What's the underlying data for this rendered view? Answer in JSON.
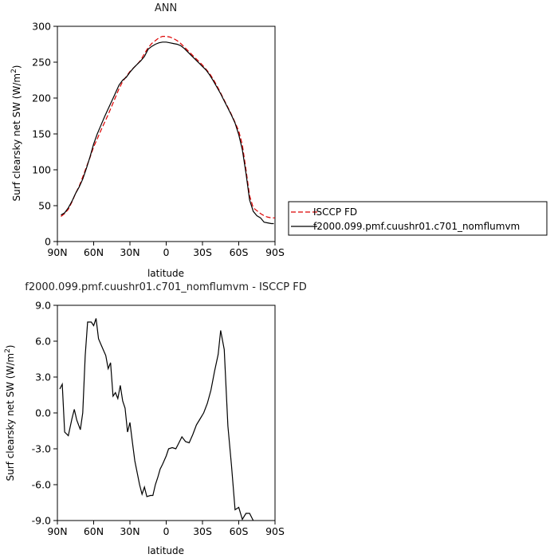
{
  "chart_data": [
    {
      "type": "line",
      "title": "ANN",
      "xlabel": "latitude",
      "ylabel": "Surf clearsky net SW (W/m²)",
      "ylabel_main": "Surf clearsky net SW (W/m",
      "ylabel_sup": "2",
      "ylabel_end": ")",
      "xlim": [
        90,
        -90
      ],
      "ylim": [
        0,
        300
      ],
      "x_ticks": [
        90,
        60,
        30,
        0,
        -30,
        -60,
        -90
      ],
      "x_tick_labels": [
        "90N",
        "60N",
        "30N",
        "0",
        "30S",
        "60S",
        "90S"
      ],
      "y_ticks": [
        0,
        50,
        100,
        150,
        200,
        250,
        300
      ],
      "y_tick_labels": [
        "0",
        "50",
        "100",
        "150",
        "200",
        "250",
        "300"
      ],
      "legend_position": "right",
      "series": [
        {
          "name": "ISCCP FD",
          "color": "#dd0000",
          "dash": "dashed",
          "points": [
            [
              87,
              35
            ],
            [
              84,
              39
            ],
            [
              81,
              45
            ],
            [
              78,
              55
            ],
            [
              75,
              67
            ],
            [
              72,
              77
            ],
            [
              69,
              90
            ],
            [
              66,
              104
            ],
            [
              63,
              117
            ],
            [
              60,
              132
            ],
            [
              57,
              143
            ],
            [
              54,
              155
            ],
            [
              51,
              166
            ],
            [
              48,
              177
            ],
            [
              45,
              189
            ],
            [
              42,
              201
            ],
            [
              39,
              213
            ],
            [
              36,
              223
            ],
            [
              33,
              230
            ],
            [
              30,
              237
            ],
            [
              27,
              242
            ],
            [
              24,
              247
            ],
            [
              21,
              253
            ],
            [
              18,
              262
            ],
            [
              15,
              270
            ],
            [
              12,
              276
            ],
            [
              9,
              280
            ],
            [
              6,
              284
            ],
            [
              3,
              286
            ],
            [
              0,
              286
            ],
            [
              -3,
              285
            ],
            [
              -6,
              283
            ],
            [
              -9,
              280
            ],
            [
              -12,
              276
            ],
            [
              -15,
              271
            ],
            [
              -18,
              266
            ],
            [
              -21,
              261
            ],
            [
              -24,
              256
            ],
            [
              -27,
              251
            ],
            [
              -30,
              246
            ],
            [
              -33,
              240
            ],
            [
              -36,
              234
            ],
            [
              -39,
              226
            ],
            [
              -42,
              217
            ],
            [
              -45,
              207
            ],
            [
              -48,
              197
            ],
            [
              -51,
              187
            ],
            [
              -54,
              177
            ],
            [
              -57,
              166
            ],
            [
              -60,
              154
            ],
            [
              -63,
              135
            ],
            [
              -66,
              100
            ],
            [
              -69,
              64
            ],
            [
              -72,
              47
            ],
            [
              -75,
              43
            ],
            [
              -78,
              39
            ],
            [
              -81,
              36
            ],
            [
              -84,
              34
            ],
            [
              -87,
              33
            ],
            [
              -90,
              33
            ]
          ]
        },
        {
          "name": "f2000.099.pmf.cuushr01.c701_nomflumvm",
          "color": "#000000",
          "dash": "solid",
          "points": [
            [
              87,
              37
            ],
            [
              84,
              40
            ],
            [
              81,
              47
            ],
            [
              78,
              56
            ],
            [
              75,
              67
            ],
            [
              72,
              76
            ],
            [
              69,
              87
            ],
            [
              66,
              102
            ],
            [
              63,
              118
            ],
            [
              60,
              136
            ],
            [
              57,
              150
            ],
            [
              54,
              162
            ],
            [
              51,
              174
            ],
            [
              48,
              185
            ],
            [
              45,
              196
            ],
            [
              42,
              207
            ],
            [
              39,
              218
            ],
            [
              36,
              225
            ],
            [
              33,
              229
            ],
            [
              30,
              236
            ],
            [
              27,
              242
            ],
            [
              24,
              247
            ],
            [
              21,
              252
            ],
            [
              18,
              258
            ],
            [
              15,
              268
            ],
            [
              12,
              272
            ],
            [
              9,
              275
            ],
            [
              6,
              277
            ],
            [
              3,
              278
            ],
            [
              0,
              278
            ],
            [
              -3,
              277
            ],
            [
              -6,
              276
            ],
            [
              -9,
              275
            ],
            [
              -12,
              273
            ],
            [
              -15,
              269
            ],
            [
              -18,
              264
            ],
            [
              -21,
              259
            ],
            [
              -24,
              254
            ],
            [
              -27,
              249
            ],
            [
              -30,
              244
            ],
            [
              -33,
              239
            ],
            [
              -36,
              232
            ],
            [
              -39,
              224
            ],
            [
              -42,
              215
            ],
            [
              -45,
              206
            ],
            [
              -48,
              196
            ],
            [
              -51,
              186
            ],
            [
              -54,
              176
            ],
            [
              -57,
              165
            ],
            [
              -60,
              149
            ],
            [
              -63,
              128
            ],
            [
              -66,
              95
            ],
            [
              -69,
              58
            ],
            [
              -72,
              42
            ],
            [
              -75,
              36
            ],
            [
              -78,
              33
            ],
            [
              -81,
              27
            ],
            [
              -84,
              26
            ],
            [
              -87,
              25
            ],
            [
              -89,
              25
            ]
          ]
        }
      ]
    },
    {
      "type": "line",
      "title": "f2000.099.pmf.cuushr01.c701_nomflumvm - ISCCP FD",
      "xlabel": "latitude",
      "ylabel": "Surf clearsky net SW (W/m²)",
      "ylabel_main": "Surf clearsky net SW (W/m",
      "ylabel_sup": "2",
      "ylabel_end": ")",
      "xlim": [
        90,
        -90
      ],
      "ylim": [
        -9,
        9
      ],
      "x_ticks": [
        90,
        60,
        30,
        0,
        -30,
        -60,
        -90
      ],
      "x_tick_labels": [
        "90N",
        "60N",
        "30N",
        "0",
        "30S",
        "60S",
        "90S"
      ],
      "y_ticks": [
        -9,
        -6,
        -3,
        0,
        3,
        6,
        9
      ],
      "y_tick_labels": [
        "-9.0",
        "-6.0",
        "-3.0",
        "0.0",
        "3.0",
        "6.0",
        "9.0"
      ],
      "series": [
        {
          "color": "#000000",
          "dash": "solid",
          "points": [
            [
              88,
              2.0
            ],
            [
              86,
              2.4
            ],
            [
              84,
              -1.6
            ],
            [
              81,
              -1.9
            ],
            [
              78,
              -0.5
            ],
            [
              76,
              0.3
            ],
            [
              74,
              -0.6
            ],
            [
              71,
              -1.4
            ],
            [
              69,
              0.0
            ],
            [
              67,
              4.8
            ],
            [
              65,
              7.6
            ],
            [
              62,
              7.6
            ],
            [
              60,
              7.3
            ],
            [
              58,
              7.9
            ],
            [
              56,
              6.2
            ],
            [
              53,
              5.5
            ],
            [
              50,
              4.8
            ],
            [
              48,
              3.7
            ],
            [
              46,
              4.2
            ],
            [
              44,
              1.4
            ],
            [
              42,
              1.7
            ],
            [
              40,
              1.2
            ],
            [
              38,
              2.3
            ],
            [
              36,
              1.0
            ],
            [
              34,
              0.4
            ],
            [
              32,
              -1.6
            ],
            [
              30,
              -0.8
            ],
            [
              28,
              -2.4
            ],
            [
              26,
              -4.0
            ],
            [
              24,
              -5.0
            ],
            [
              22,
              -6.0
            ],
            [
              20,
              -6.8
            ],
            [
              18,
              -6.2
            ],
            [
              16,
              -7.0
            ],
            [
              13,
              -6.9
            ],
            [
              11,
              -6.9
            ],
            [
              9,
              -6.0
            ],
            [
              7,
              -5.4
            ],
            [
              5,
              -4.7
            ],
            [
              3,
              -4.3
            ],
            [
              0,
              -3.6
            ],
            [
              -2,
              -3.0
            ],
            [
              -5,
              -2.9
            ],
            [
              -8,
              -3.0
            ],
            [
              -10,
              -2.6
            ],
            [
              -13,
              -2.0
            ],
            [
              -16,
              -2.4
            ],
            [
              -19,
              -2.5
            ],
            [
              -22,
              -1.8
            ],
            [
              -25,
              -1.0
            ],
            [
              -28,
              -0.5
            ],
            [
              -31,
              0.0
            ],
            [
              -34,
              0.8
            ],
            [
              -37,
              1.9
            ],
            [
              -40,
              3.5
            ],
            [
              -43,
              4.9
            ],
            [
              -45,
              6.9
            ],
            [
              -48,
              5.3
            ],
            [
              -51,
              -1.1
            ],
            [
              -54,
              -4.4
            ],
            [
              -57,
              -8.1
            ],
            [
              -60,
              -7.9
            ],
            [
              -63,
              -8.9
            ],
            [
              -66,
              -8.4
            ],
            [
              -69,
              -8.4
            ],
            [
              -72,
              -9.0
            ]
          ]
        }
      ]
    }
  ]
}
